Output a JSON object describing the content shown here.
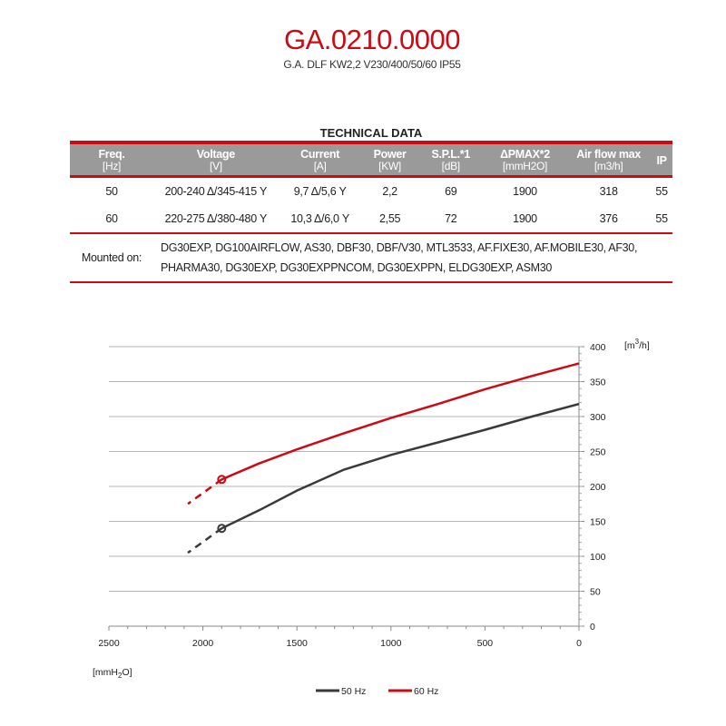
{
  "header": {
    "title": "GA.0210.0000",
    "subtitle": "G.A. DLF KW2,2 V230/400/50/60 IP55"
  },
  "table": {
    "title": "TECHNICAL DATA",
    "columns": [
      {
        "name": "Freq.",
        "unit": "[Hz]"
      },
      {
        "name": "Voltage",
        "unit": "[V]"
      },
      {
        "name": "Current",
        "unit": "[A]"
      },
      {
        "name": "Power",
        "unit": "[KW]"
      },
      {
        "name": "S.P.L.*1",
        "unit": "[dB]"
      },
      {
        "name": "ΔPMAX*2",
        "unit": "[mmH2O]"
      },
      {
        "name": "Air flow max",
        "unit": "[m3/h]"
      },
      {
        "name": "IP",
        "unit": ""
      }
    ],
    "rows": [
      [
        "50",
        "200-240 Δ/345-415 Y",
        "9,7 Δ/5,6 Y",
        "2,2",
        "69",
        "1900",
        "318",
        "55"
      ],
      [
        "60",
        "220-275 Δ/380-480 Y",
        "10,3 Δ/6,0 Y",
        "2,55",
        "72",
        "1900",
        "376",
        "55"
      ]
    ],
    "mounted_label": "Mounted on:",
    "mounted_on": "DG30EXP, DG100AIRFLOW, AS30, DBF30, DBF/V30, MTL3533, AF.FIXE30, AF.MOBILE30, AF30, PHARMA30, DG30EXP, DG30EXPPNCOM, DG30EXPPN, ELDG30EXP, ASM30"
  },
  "chart_data": {
    "type": "line",
    "xlabel": "[mmH2O]",
    "ylabel": "[m3/h]",
    "xlim": [
      2500,
      0
    ],
    "ylim": [
      0,
      400
    ],
    "x_reversed": true,
    "xticks": [
      2500,
      2000,
      1500,
      1000,
      500,
      0
    ],
    "yticks": [
      0,
      50,
      100,
      150,
      200,
      250,
      300,
      350,
      400
    ],
    "grid": "horizontal",
    "legend": "bottom",
    "series": [
      {
        "name": "50 Hz",
        "color": "#3a3a3a",
        "points": [
          [
            0,
            318
          ],
          [
            250,
            300
          ],
          [
            500,
            281
          ],
          [
            750,
            263
          ],
          [
            1000,
            245
          ],
          [
            1250,
            224
          ],
          [
            1500,
            194
          ],
          [
            1700,
            166
          ],
          [
            1900,
            140
          ]
        ],
        "dashed": [
          [
            1900,
            140
          ],
          [
            2080,
            105
          ]
        ],
        "marker": [
          1900,
          140
        ]
      },
      {
        "name": "60 Hz",
        "color": "#cc0a14",
        "points": [
          [
            0,
            376
          ],
          [
            250,
            358
          ],
          [
            500,
            339
          ],
          [
            750,
            318
          ],
          [
            1000,
            298
          ],
          [
            1250,
            276
          ],
          [
            1500,
            253
          ],
          [
            1700,
            233
          ],
          [
            1900,
            210
          ]
        ],
        "dashed": [
          [
            1900,
            210
          ],
          [
            2080,
            175
          ]
        ],
        "marker": [
          1900,
          210
        ]
      }
    ]
  }
}
